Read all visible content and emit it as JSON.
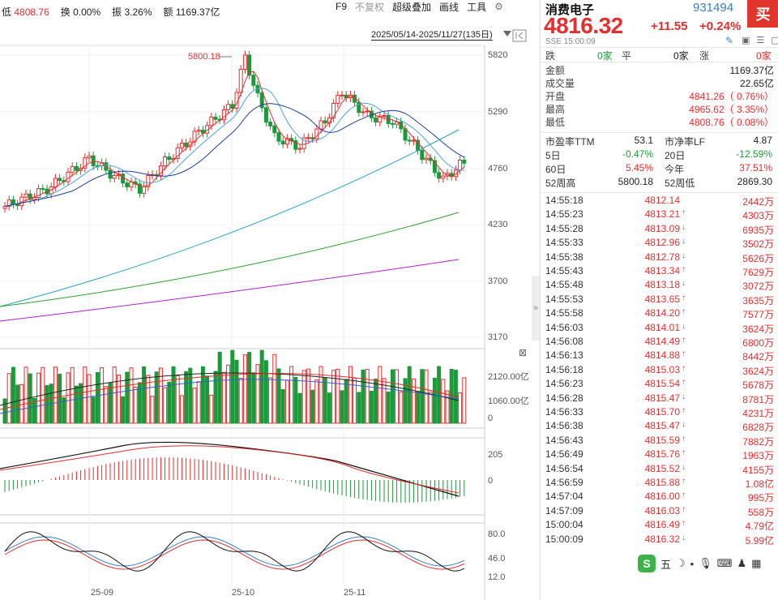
{
  "info_bar": {
    "low_label": "低",
    "low_value": "4808.76",
    "turnover_label": "换",
    "turnover_value": "0.00%",
    "amplitude_label": "振",
    "amplitude_value": "3.26%",
    "amount_label": "额",
    "amount_value": "1169.37亿"
  },
  "toolbar": {
    "f9": "F9",
    "no_adjust": "不复权",
    "overlay": "超级叠加",
    "draw_line": "画线",
    "tools": "工具",
    "settings_icon": "gear-icon"
  },
  "chart": {
    "range_label": "2025/05/14-2025/11/27(135日)",
    "max_label": "5800.18",
    "price_axis": [
      "5820",
      "5290",
      "4760",
      "4230",
      "3700",
      "3170"
    ],
    "volume_axis": [
      "2120.00亿",
      "1060.00亿",
      "0"
    ],
    "macd_axis": [
      "205",
      "0"
    ],
    "kdj_axis": [
      "80.0",
      "46.0",
      "12.0"
    ],
    "dates": [
      "25-09",
      "25-10",
      "25-11"
    ],
    "close_icon": "close-icon",
    "expand_icon": "double-chevron-right-icon",
    "up_color": "#e52e2e",
    "down_color": "#1a9a3a"
  },
  "panel": {
    "name": "消费电子",
    "code": "931494",
    "buy_label": "买",
    "price": "4816.32",
    "change": "+11.55",
    "change_pct": "+0.24%",
    "market": "SSE",
    "time": "15:00:09",
    "breadth": {
      "fall_label": "跌",
      "fall_value": "0家",
      "flat_label": "平",
      "flat_value": "0家",
      "rise_label": "涨",
      "rise_value": "0家"
    },
    "stats": [
      {
        "label": "金额",
        "value": "1169.37亿",
        "color": "black"
      },
      {
        "label": "成交量",
        "value": "22.65亿",
        "color": "black"
      },
      {
        "label": "开盘",
        "value": "4841.26（ 0.76%）",
        "color": "red"
      },
      {
        "label": "最高",
        "value": "4965.62（ 3.35%）",
        "color": "red"
      },
      {
        "label": "最低",
        "value": "4808.76（ 0.08%）",
        "color": "red"
      }
    ],
    "ratios": [
      {
        "l_label": "市盈率TTM",
        "l_value": "53.1",
        "l_color": "black",
        "r_label": "市净率LF",
        "r_value": "4.87",
        "r_color": "black"
      },
      {
        "l_label": "5日",
        "l_value": "-0.47%",
        "l_color": "green",
        "r_label": "20日",
        "r_value": "-12.59%",
        "r_color": "green"
      },
      {
        "l_label": "60日",
        "l_value": "5.45%",
        "l_color": "red",
        "r_label": "今年",
        "r_value": "37.51%",
        "r_color": "red"
      },
      {
        "l_label": "52周高",
        "l_value": "5800.18",
        "l_color": "black",
        "r_label": "52周低",
        "r_value": "2869.30",
        "r_color": "black"
      }
    ],
    "ticks": [
      {
        "time": "14:55:18",
        "price": "4812.14",
        "dir": "",
        "vol": "2442万"
      },
      {
        "time": "14:55:23",
        "price": "4813.21",
        "dir": "up",
        "vol": "4303万"
      },
      {
        "time": "14:55:28",
        "price": "4813.09",
        "dir": "down",
        "vol": "6935万"
      },
      {
        "time": "14:55:33",
        "price": "4812.96",
        "dir": "down",
        "vol": "3502万"
      },
      {
        "time": "14:55:38",
        "price": "4812.78",
        "dir": "down",
        "vol": "5626万"
      },
      {
        "time": "14:55:43",
        "price": "4813.34",
        "dir": "up",
        "vol": "7629万"
      },
      {
        "time": "14:55:48",
        "price": "4813.18",
        "dir": "down",
        "vol": "3072万"
      },
      {
        "time": "14:55:53",
        "price": "4813.65",
        "dir": "up",
        "vol": "3635万"
      },
      {
        "time": "14:55:58",
        "price": "4814.20",
        "dir": "up",
        "vol": "7577万"
      },
      {
        "time": "14:56:03",
        "price": "4814.01",
        "dir": "down",
        "vol": "3624万"
      },
      {
        "time": "14:56:08",
        "price": "4814.49",
        "dir": "up",
        "vol": "6800万"
      },
      {
        "time": "14:56:13",
        "price": "4814.88",
        "dir": "up",
        "vol": "8442万"
      },
      {
        "time": "14:56:18",
        "price": "4815.03",
        "dir": "up",
        "vol": "3624万"
      },
      {
        "time": "14:56:23",
        "price": "4815.54",
        "dir": "up",
        "vol": "5678万"
      },
      {
        "time": "14:56:28",
        "price": "4815.47",
        "dir": "down",
        "vol": "8781万"
      },
      {
        "time": "14:56:33",
        "price": "4815.70",
        "dir": "up",
        "vol": "4231万"
      },
      {
        "time": "14:56:38",
        "price": "4815.47",
        "dir": "down",
        "vol": "6828万"
      },
      {
        "time": "14:56:43",
        "price": "4815.59",
        "dir": "up",
        "vol": "7882万"
      },
      {
        "time": "14:56:49",
        "price": "4815.76",
        "dir": "up",
        "vol": "1963万"
      },
      {
        "time": "14:56:54",
        "price": "4815.52",
        "dir": "down",
        "vol": "4155万"
      },
      {
        "time": "14:56:59",
        "price": "4815.88",
        "dir": "up",
        "vol": "1.08亿"
      },
      {
        "time": "14:57:04",
        "price": "4816.00",
        "dir": "up",
        "vol": "995万"
      },
      {
        "time": "14:57:09",
        "price": "4816.03",
        "dir": "up",
        "vol": "558万"
      },
      {
        "time": "15:00:04",
        "price": "4816.49",
        "dir": "up",
        "vol": "4.79亿"
      },
      {
        "time": "15:00:09",
        "price": "4816.32",
        "dir": "down",
        "vol": "5.99亿"
      }
    ],
    "bottom_toolbar": {
      "logo": "S",
      "wu": "五",
      "moon_icon": "moon-icon",
      "dot_icon": "dot-icon",
      "mic_icon": "mic-icon",
      "keyboard_icon": "keyboard-icon",
      "user_icon": "user-icon",
      "grid_icon": "grid-icon"
    }
  }
}
